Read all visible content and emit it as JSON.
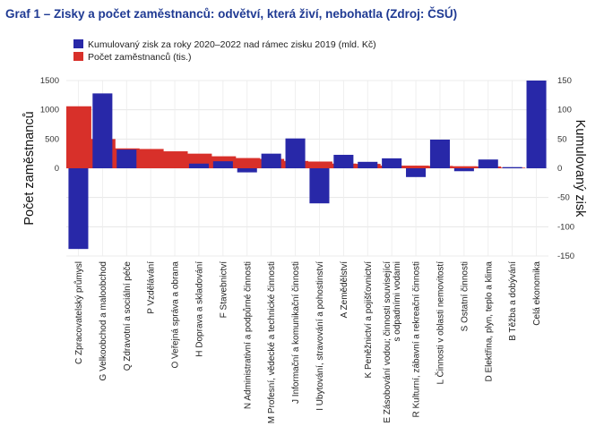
{
  "title": "Graf 1 – Zisky a počet zaměstnanců: odvětví, která živí, nebohatla (Zdroj: ČSÚ)",
  "colors": {
    "profit": "#2828a8",
    "employees": "#d8302a",
    "title": "#1f3a93"
  },
  "chart_data": {
    "type": "bar",
    "categories": [
      "C Zpracovatelský průmysl",
      "G Velkoobchod a maloobchod",
      "Q Zdravotní a sociální péče",
      "P Vzdělávání",
      "O Veřejná správa a obrana",
      "H Doprava a skladování",
      "F Stavebnictví",
      "N Administrativní a podpůrné činnosti",
      "M Profesní, vědecké a technické činnosti",
      "J Informační a komunikační činnosti",
      "I Ubytování, stravování a pohostinství",
      "A Zemědělství",
      "K Peněžnictví a pojišťovnictví",
      "E Zásobování vodou; činnosti související s odpadními vodami",
      "R Kulturní, zábavní a rekreační činnosti",
      "L Činnosti v oblasti nemovitostí",
      "S Ostatní činnosti",
      "D Elektřina, plyn, teplo a klima",
      "B Těžba a dobývání",
      "Celá ekonomika"
    ],
    "series": [
      {
        "name": "Počet zaměstnanců (tis.)",
        "axis": "left",
        "values": [
          1060,
          500,
          340,
          330,
          290,
          250,
          205,
          175,
          160,
          125,
          115,
          80,
          75,
          45,
          45,
          40,
          35,
          30,
          10,
          0
        ]
      },
      {
        "name": "Kumulovaný zisk za roky 2020–2022 nad rámec zisku 2019 (mld. Kč)",
        "axis": "right",
        "values": [
          -138,
          128,
          32,
          0,
          0,
          8,
          12,
          -7,
          25,
          51,
          -60,
          23,
          11,
          17,
          -15,
          49,
          -5,
          15,
          2,
          150
        ]
      }
    ],
    "ylabel_left": "Počet zaměstnanců",
    "ylabel_right": "Kumulovaný zisk",
    "ylim_left": [
      -1500,
      1500
    ],
    "ylim_right": [
      -150,
      150
    ],
    "yticks_left": [
      0,
      500,
      1000,
      1500
    ],
    "yticks_right": [
      -150,
      -100,
      -50,
      0,
      50,
      100,
      150
    ],
    "grid": true
  }
}
